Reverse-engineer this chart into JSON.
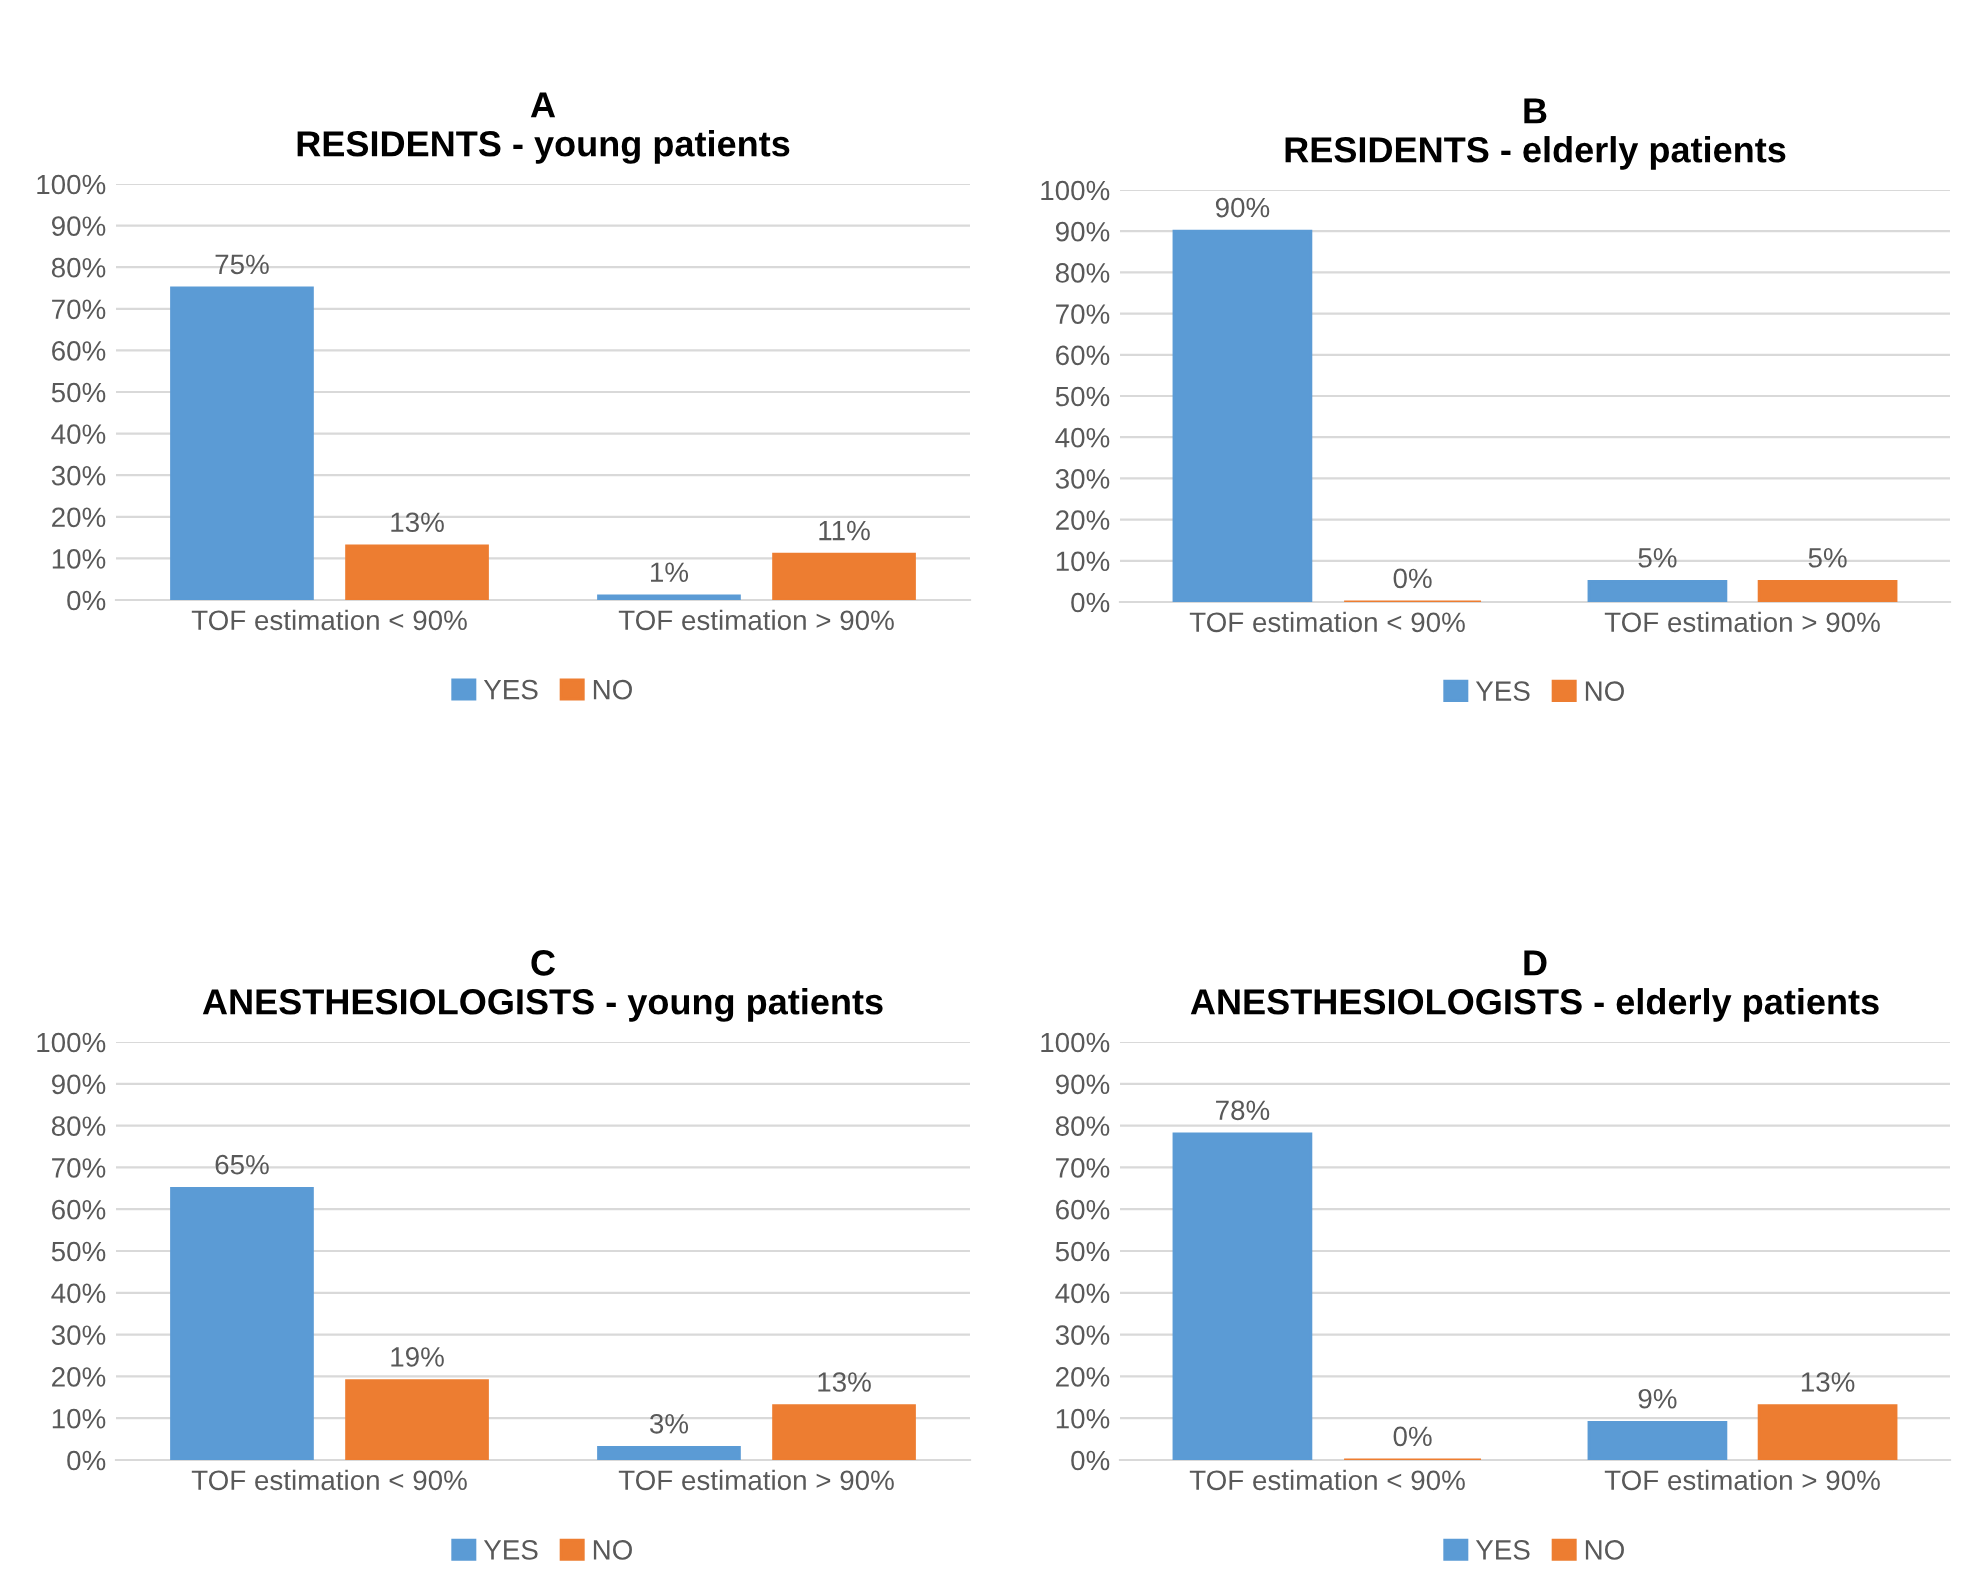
{
  "chart_data": [
    {
      "type": "bar",
      "title": "A",
      "subtitle": "RESIDENTS - young patients",
      "categories": [
        "TOF estimation < 90%",
        "TOF estimation > 90%"
      ],
      "series": [
        {
          "name": "YES",
          "color": "#5b9bd5",
          "values": [
            75,
            1
          ],
          "value_labels": [
            "75%",
            "1%"
          ]
        },
        {
          "name": "NO",
          "color": "#ed7d31",
          "values": [
            13,
            11
          ],
          "value_labels": [
            "13%",
            "11%"
          ]
        }
      ],
      "ylim": [
        0,
        100
      ],
      "yticks": [
        {
          "value": 0,
          "label": "0%"
        },
        {
          "value": 10,
          "label": "10%"
        },
        {
          "value": 20,
          "label": "20%"
        },
        {
          "value": 30,
          "label": "30%"
        },
        {
          "value": 40,
          "label": "40%"
        },
        {
          "value": 50,
          "label": "50%"
        },
        {
          "value": 60,
          "label": "60%"
        },
        {
          "value": 70,
          "label": "70%"
        },
        {
          "value": 80,
          "label": "80%"
        },
        {
          "value": 90,
          "label": "90%"
        },
        {
          "value": 100,
          "label": "100%"
        }
      ],
      "grid": "y",
      "legend": "bottom"
    },
    {
      "type": "bar",
      "title": "B",
      "subtitle": "RESIDENTS - elderly patients",
      "categories": [
        "TOF estimation < 90%",
        "TOF estimation > 90%"
      ],
      "series": [
        {
          "name": "YES",
          "color": "#5b9bd5",
          "values": [
            90,
            5
          ],
          "value_labels": [
            "90%",
            "5%"
          ]
        },
        {
          "name": "NO",
          "color": "#ed7d31",
          "values": [
            0,
            5
          ],
          "value_labels": [
            "0%",
            "5%"
          ]
        }
      ],
      "ylim": [
        0,
        100
      ],
      "yticks": [
        {
          "value": 0,
          "label": "0%"
        },
        {
          "value": 10,
          "label": "10%"
        },
        {
          "value": 20,
          "label": "20%"
        },
        {
          "value": 30,
          "label": "30%"
        },
        {
          "value": 40,
          "label": "40%"
        },
        {
          "value": 50,
          "label": "50%"
        },
        {
          "value": 60,
          "label": "60%"
        },
        {
          "value": 70,
          "label": "70%"
        },
        {
          "value": 80,
          "label": "80%"
        },
        {
          "value": 90,
          "label": "90%"
        },
        {
          "value": 100,
          "label": "100%"
        }
      ],
      "grid": "y",
      "legend": "bottom"
    },
    {
      "type": "bar",
      "title": "C",
      "subtitle": "ANESTHESIOLOGISTS - young patients",
      "categories": [
        "TOF estimation < 90%",
        "TOF estimation > 90%"
      ],
      "series": [
        {
          "name": "YES",
          "color": "#5b9bd5",
          "values": [
            65,
            3
          ],
          "value_labels": [
            "65%",
            "3%"
          ]
        },
        {
          "name": "NO",
          "color": "#ed7d31",
          "values": [
            19,
            13
          ],
          "value_labels": [
            "19%",
            "13%"
          ]
        }
      ],
      "ylim": [
        0,
        100
      ],
      "yticks": [
        {
          "value": 0,
          "label": "0%"
        },
        {
          "value": 10,
          "label": "10%"
        },
        {
          "value": 20,
          "label": "20%"
        },
        {
          "value": 30,
          "label": "30%"
        },
        {
          "value": 40,
          "label": "40%"
        },
        {
          "value": 50,
          "label": "50%"
        },
        {
          "value": 60,
          "label": "60%"
        },
        {
          "value": 70,
          "label": "70%"
        },
        {
          "value": 80,
          "label": "80%"
        },
        {
          "value": 90,
          "label": "90%"
        },
        {
          "value": 100,
          "label": "100%"
        }
      ],
      "grid": "y",
      "legend": "bottom"
    },
    {
      "type": "bar",
      "title": "D",
      "subtitle": "ANESTHESIOLOGISTS - elderly patients",
      "categories": [
        "TOF estimation < 90%",
        "TOF estimation > 90%"
      ],
      "series": [
        {
          "name": "YES",
          "color": "#5b9bd5",
          "values": [
            78,
            9
          ],
          "value_labels": [
            "78%",
            "9%"
          ]
        },
        {
          "name": "NO",
          "color": "#ed7d31",
          "values": [
            0,
            13
          ],
          "value_labels": [
            "0%",
            "13%"
          ]
        }
      ],
      "ylim": [
        0,
        100
      ],
      "yticks": [
        {
          "value": 0,
          "label": "0%"
        },
        {
          "value": 10,
          "label": "10%"
        },
        {
          "value": 20,
          "label": "20%"
        },
        {
          "value": 30,
          "label": "30%"
        },
        {
          "value": 40,
          "label": "40%"
        },
        {
          "value": 50,
          "label": "50%"
        },
        {
          "value": 60,
          "label": "60%"
        },
        {
          "value": 70,
          "label": "70%"
        },
        {
          "value": 80,
          "label": "80%"
        },
        {
          "value": 90,
          "label": "90%"
        },
        {
          "value": 100,
          "label": "100%"
        }
      ],
      "grid": "y",
      "legend": "bottom"
    }
  ]
}
